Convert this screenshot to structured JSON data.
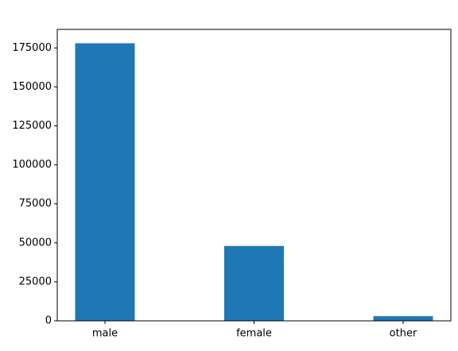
{
  "chart_data": {
    "type": "bar",
    "categories": [
      "male",
      "female",
      "other"
    ],
    "values": [
      178000,
      48000,
      3000
    ],
    "color": "#1f77b4",
    "ylim": [
      0,
      186900
    ],
    "yticks": [
      0,
      25000,
      50000,
      75000,
      100000,
      125000,
      150000,
      175000
    ],
    "grid": false
  }
}
